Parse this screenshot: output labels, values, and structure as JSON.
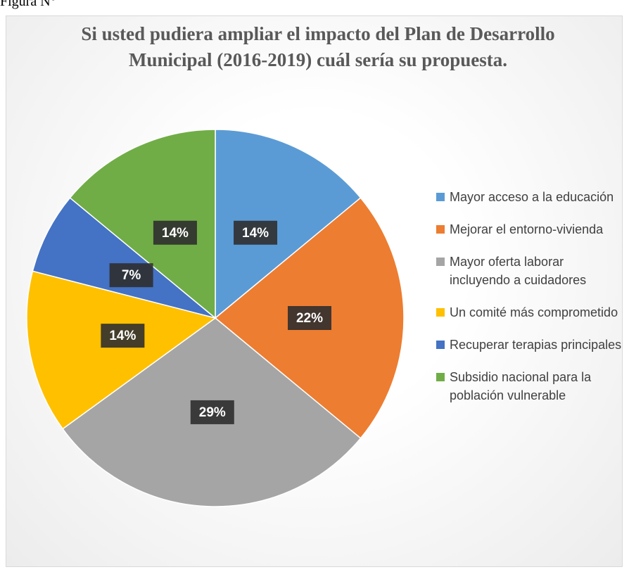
{
  "caption": "Figura N°",
  "chart_data": {
    "type": "pie",
    "title": "Si usted pudiera ampliar el impacto del Plan de Desarrollo Municipal (2016-2019) cuál sería su propuesta.",
    "categories": [
      "Mayor acceso a la educación",
      "Mejorar el entorno-vivienda",
      "Mayor oferta laborar incluyendo a cuidadores",
      "Un comité más comprometido",
      "Recuperar terapias principales",
      "Subsidio nacional para la población vulnerable"
    ],
    "values": [
      14,
      22,
      29,
      14,
      7,
      14
    ],
    "value_labels": [
      "14%",
      "22%",
      "29%",
      "14%",
      "7%",
      "14%"
    ],
    "colors": [
      "#5b9bd5",
      "#ed7d31",
      "#a5a5a5",
      "#ffc000",
      "#4472c4",
      "#70ad47"
    ],
    "legend": "right"
  }
}
